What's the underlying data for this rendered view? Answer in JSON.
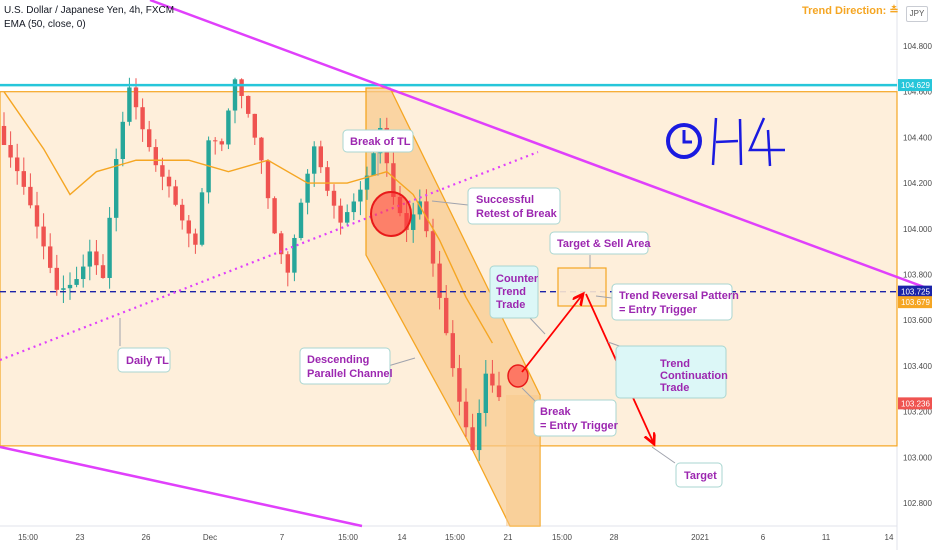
{
  "header": {
    "symbol": "U.S. Dollar / Japanese Yen, 4h, FXCM",
    "ema": "EMA (50, close, 0)",
    "trend_direction": "Trend Direction:",
    "currency": "JPY"
  },
  "colors": {
    "bull": "#26a69a",
    "bear": "#ef5350",
    "channel": "#f5a623",
    "trendline": "#e040fb",
    "resistance": "#26c6da",
    "dashed": "#1a23a8",
    "annotation_text": "#9c27b0",
    "arrow": "#ff0000"
  },
  "chart_data": {
    "type": "candlestick",
    "symbol": "USDJPY",
    "timeframe": "4h",
    "yticks": [
      "104.800",
      "104.600",
      "104.400",
      "104.200",
      "104.000",
      "103.800",
      "103.600",
      "103.400",
      "103.200",
      "103.000",
      "102.800"
    ],
    "xticks": [
      "15:00",
      "23",
      "26",
      "Dec",
      "7",
      "15:00",
      "14",
      "15:00",
      "21",
      "15:00",
      "28",
      "2021",
      "6",
      "11",
      "14"
    ],
    "price_badges": [
      {
        "label": "104.629",
        "value": 104.629,
        "color": "#26c6da"
      },
      {
        "label": "103.725",
        "value": 103.725,
        "color": "#1a23a8"
      },
      {
        "label": "103.679",
        "value": 103.679,
        "color": "#f5a623"
      },
      {
        "label": "103.236",
        "value": 103.236,
        "color": "#ef5350"
      }
    ],
    "levels": {
      "resistance": 104.629,
      "range_top": 104.6,
      "range_bottom": 103.05,
      "dashed_level": 103.725
    },
    "price_path": [
      {
        "x": 0,
        "y": 104.45
      },
      {
        "x": 3,
        "y": 104.2
      },
      {
        "x": 6,
        "y": 103.95
      },
      {
        "x": 9,
        "y": 103.75
      },
      {
        "x": 12,
        "y": 103.85
      },
      {
        "x": 14,
        "y": 103.95
      },
      {
        "x": 16,
        "y": 103.78
      },
      {
        "x": 18,
        "y": 104.25
      },
      {
        "x": 20,
        "y": 104.55
      },
      {
        "x": 22,
        "y": 104.4
      },
      {
        "x": 24,
        "y": 104.3
      },
      {
        "x": 26,
        "y": 104.25
      },
      {
        "x": 28,
        "y": 104.1
      },
      {
        "x": 30,
        "y": 103.95
      },
      {
        "x": 32,
        "y": 104.35
      },
      {
        "x": 34,
        "y": 104.3
      },
      {
        "x": 36,
        "y": 104.6
      },
      {
        "x": 38,
        "y": 104.5
      },
      {
        "x": 40,
        "y": 104.35
      },
      {
        "x": 42,
        "y": 104.05
      },
      {
        "x": 44,
        "y": 103.85
      },
      {
        "x": 46,
        "y": 104.1
      },
      {
        "x": 48,
        "y": 104.3
      },
      {
        "x": 50,
        "y": 104.1
      },
      {
        "x": 52,
        "y": 104.0
      },
      {
        "x": 54,
        "y": 104.15
      },
      {
        "x": 56,
        "y": 104.3
      },
      {
        "x": 58,
        "y": 104.5
      },
      {
        "x": 60,
        "y": 104.15
      },
      {
        "x": 62,
        "y": 103.95
      },
      {
        "x": 64,
        "y": 104.05
      },
      {
        "x": 66,
        "y": 103.8
      },
      {
        "x": 68,
        "y": 103.55
      },
      {
        "x": 70,
        "y": 103.3
      },
      {
        "x": 72,
        "y": 103.1
      },
      {
        "x": 74,
        "y": 103.4
      },
      {
        "x": 76,
        "y": 103.24
      }
    ],
    "ema_path": [
      {
        "x": 0,
        "y": 104.6
      },
      {
        "x": 6,
        "y": 104.35
      },
      {
        "x": 10,
        "y": 104.15
      },
      {
        "x": 14,
        "y": 104.25
      },
      {
        "x": 20,
        "y": 104.3
      },
      {
        "x": 28,
        "y": 104.3
      },
      {
        "x": 34,
        "y": 104.25
      },
      {
        "x": 40,
        "y": 104.3
      },
      {
        "x": 46,
        "y": 104.2
      },
      {
        "x": 52,
        "y": 104.2
      },
      {
        "x": 58,
        "y": 104.25
      },
      {
        "x": 62,
        "y": 104.15
      },
      {
        "x": 66,
        "y": 103.95
      },
      {
        "x": 70,
        "y": 103.7
      },
      {
        "x": 74,
        "y": 103.5
      }
    ],
    "annotations": {
      "break_tl": "Break of TL",
      "retest": [
        "Successful",
        "Retest of Break"
      ],
      "target_sell": "Target & Sell Area",
      "counter": [
        "Counter",
        "Trend",
        "Trade"
      ],
      "reversal": [
        "Trend Reversal Pattern",
        "= Entry Trigger"
      ],
      "daily_tl": "Daily TL",
      "channel": [
        "Descending",
        "Parallel Channel"
      ],
      "continuation": [
        "Trend",
        "Continuation",
        "Trade"
      ],
      "break_entry": [
        "Break",
        "= Entry Trigger"
      ],
      "target": "Target",
      "timeframe_logo": "H4"
    }
  }
}
